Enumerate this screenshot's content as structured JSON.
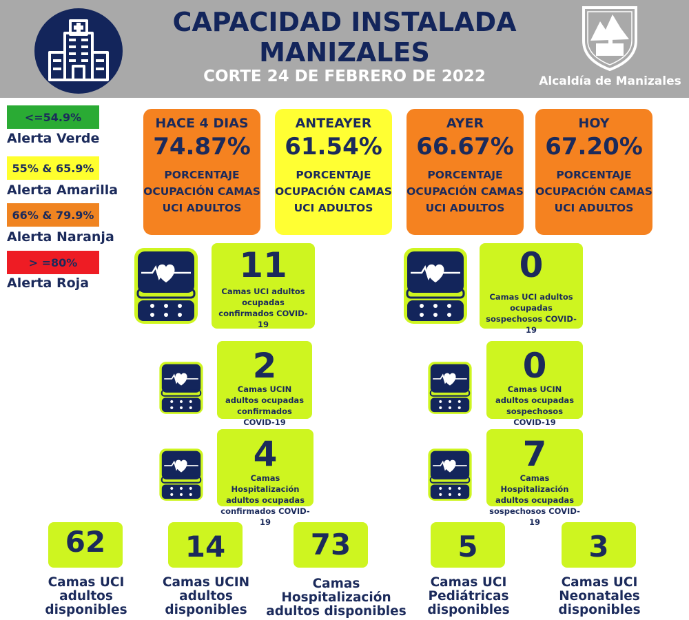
{
  "header": {
    "title_line1": "CAPACIDAD INSTALADA",
    "title_line2": "MANIZALES",
    "subtitle": "CORTE 24 DE FEBRERO DE 2022",
    "organization": "Alcaldía de Manizales"
  },
  "legend": [
    {
      "range": "<=54.9%",
      "label": "Alerta Verde",
      "color": "#2aab34"
    },
    {
      "range": "55% & 65.9%",
      "label": "Alerta Amarilla",
      "color": "#ffff2e"
    },
    {
      "range": "66% & 79.9%",
      "label": "Alerta Naranja",
      "color": "#f08421"
    },
    {
      "range": "> =80%",
      "label": "Alerta Roja",
      "color": "#ee1c24"
    }
  ],
  "occupancy": [
    {
      "period": "HACE 4 DIAS",
      "value": "74.87%",
      "description": "PORCENTAJE OCUPACIÓN CAMAS UCI ADULTOS",
      "color": "#f58220"
    },
    {
      "period": "ANTEAYER",
      "value": "61.54%",
      "description": "PORCENTAJE OCUPACIÓN CAMAS UCI ADULTOS",
      "color": "#ffff33"
    },
    {
      "period": "AYER",
      "value": "66.67%",
      "description": "PORCENTAJE OCUPACIÓN CAMAS UCI ADULTOS",
      "color": "#f58220"
    },
    {
      "period": "HOY",
      "value": "67.20%",
      "description": "PORCENTAJE OCUPACIÓN CAMAS UCI ADULTOS",
      "color": "#f58220"
    }
  ],
  "stats": [
    {
      "value": "11",
      "label": "Camas UCI adultos ocupadas confirmados COVID-19"
    },
    {
      "value": "0",
      "label": "Camas UCI adultos ocupadas sospechosos COVID-19"
    },
    {
      "value": "2",
      "label": "Camas UCIN adultos ocupadas confirmados COVID-19"
    },
    {
      "value": "0",
      "label": "Camas UCIN adultos ocupadas sospechosos COVID-19"
    },
    {
      "value": "4",
      "label": "Camas Hospitalización adultos ocupadas confirmados COVID-19"
    },
    {
      "value": "7",
      "label": "Camas Hospitalización adultos ocupadas sospechosos COVID-19"
    }
  ],
  "available": [
    {
      "value": "62",
      "label": "Camas UCI adultos disponibles"
    },
    {
      "value": "14",
      "label": "Camas UCIN adultos disponibles"
    },
    {
      "value": "73",
      "label": "Camas Hospitalización adultos disponibles"
    },
    {
      "value": "5",
      "label": "Camas UCI Pediátricas disponibles"
    },
    {
      "value": "3",
      "label": "Camas UCI Neonatales disponibles"
    }
  ],
  "icons": {
    "header_logo": "hospital-building-icon",
    "crest": "city-crest-icon",
    "monitor": "heart-monitor-icon",
    "accent": "#cef520",
    "navy": "#13255b"
  }
}
